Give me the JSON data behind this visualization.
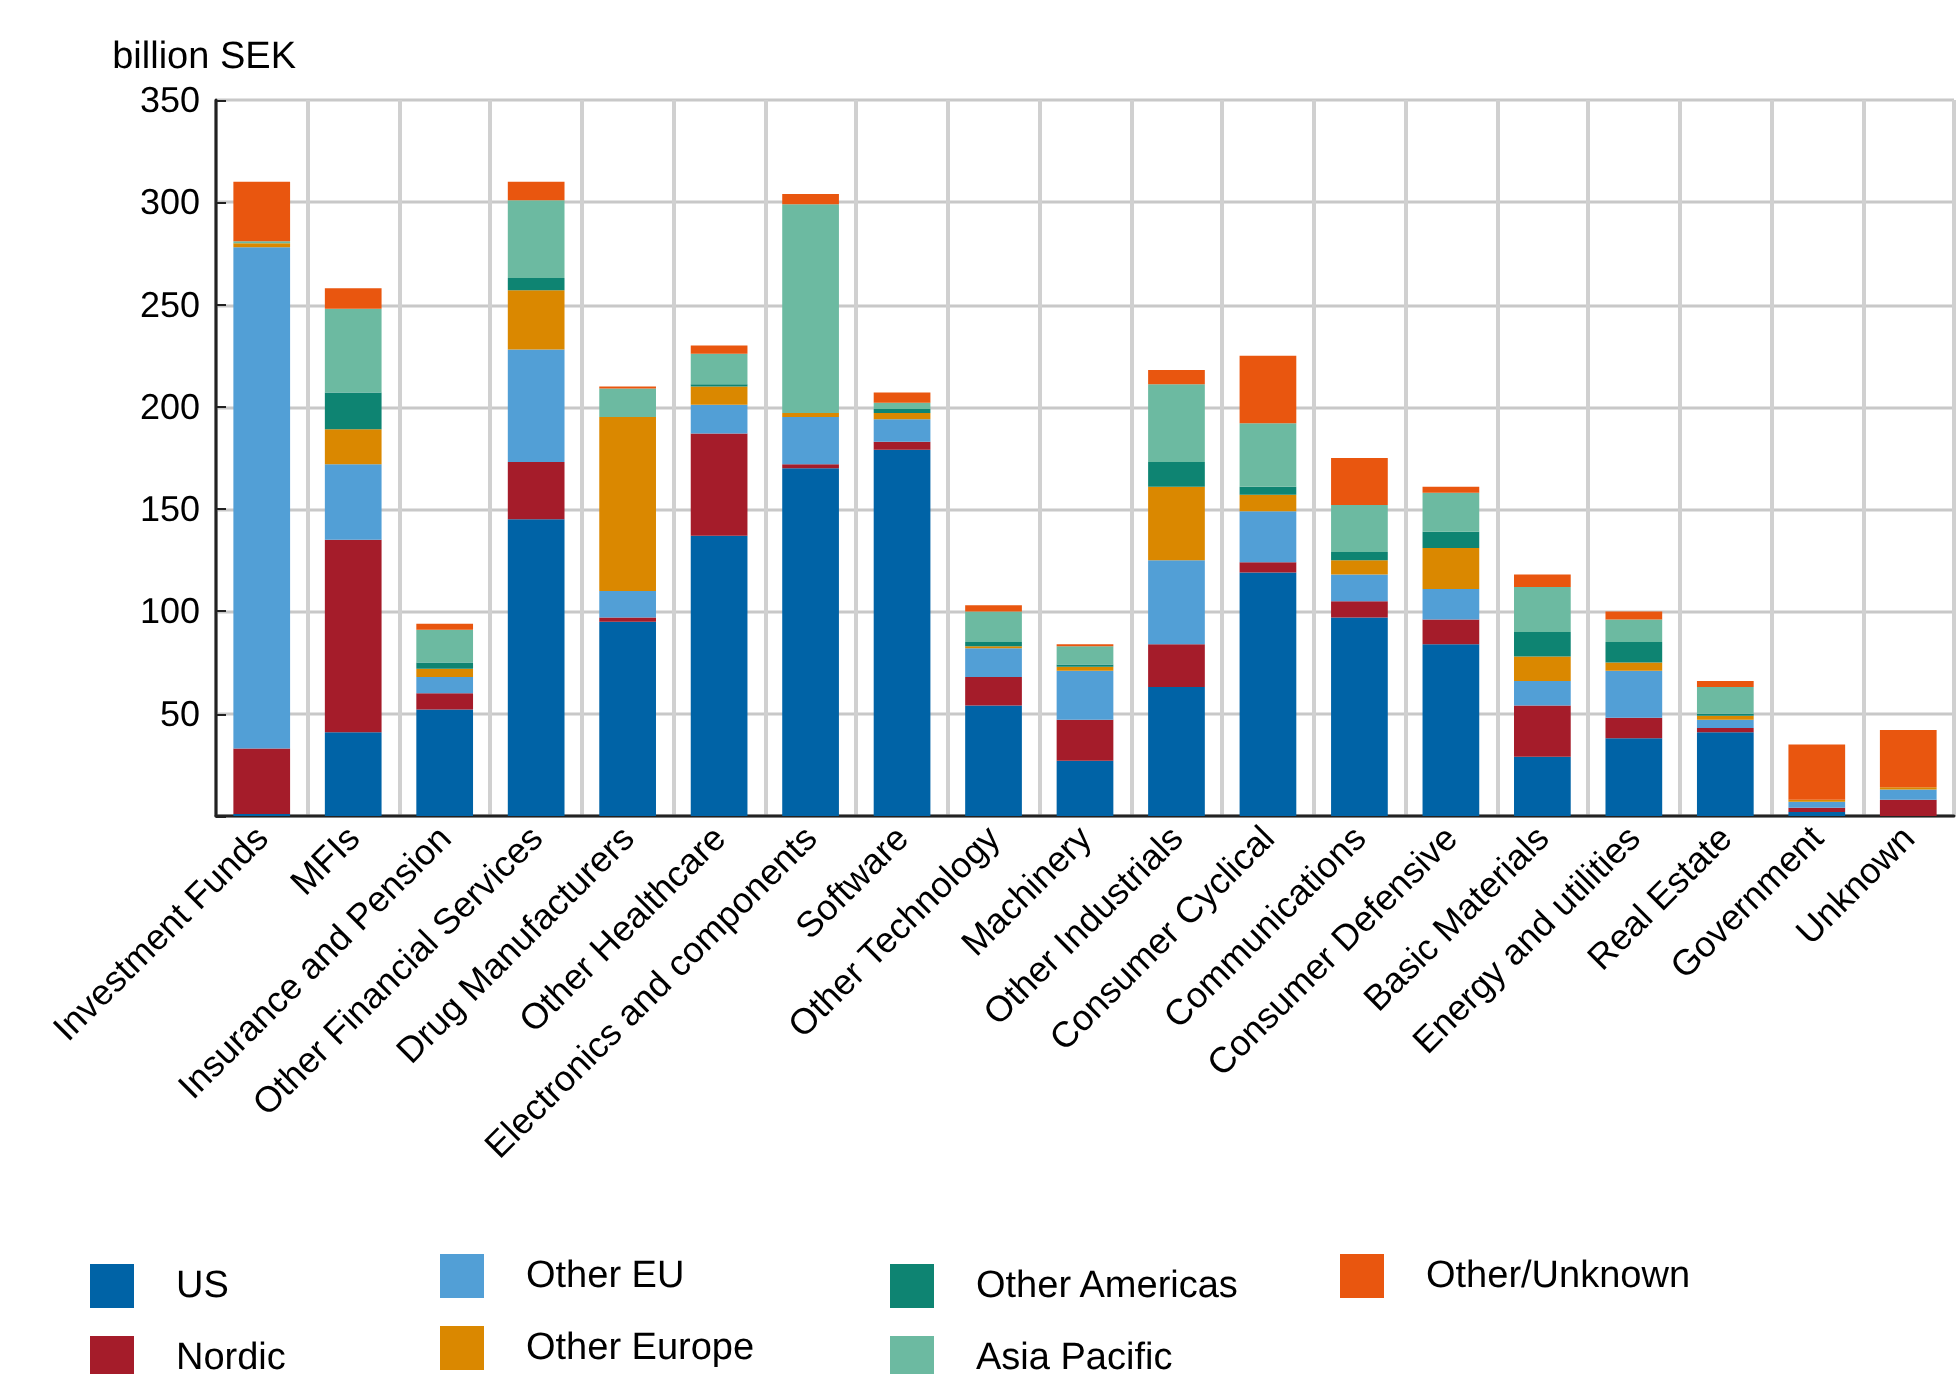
{
  "chart_data": {
    "type": "bar",
    "stacked": true,
    "ylabel": "billion SEK",
    "categories": [
      "Investment Funds",
      "MFIs",
      "Insurance and Pension",
      "Other Financial Services",
      "Drug Manufacturers",
      "Other Healthcare",
      "Electronics and components",
      "Software",
      "Other Technology",
      "Machinery",
      "Other Industrials",
      "Consumer Cyclical",
      "Communications",
      "Consumer Defensive",
      "Basic Materials",
      "Energy and utilities",
      "Real Estate",
      "Government",
      "Unknown"
    ],
    "series": [
      {
        "name": "US",
        "color": "#0063a6",
        "values": [
          1,
          41,
          52,
          145,
          95,
          137,
          170,
          179,
          54,
          27,
          63,
          119,
          97,
          84,
          29,
          38,
          41,
          2,
          0
        ]
      },
      {
        "name": "Nordic",
        "color": "#a51c2a",
        "values": [
          32,
          94,
          8,
          28,
          2,
          50,
          2,
          4,
          14,
          20,
          21,
          5,
          8,
          12,
          25,
          10,
          2,
          2,
          8
        ]
      },
      {
        "name": "Other EU",
        "color": "#529fd6",
        "values": [
          245,
          37,
          8,
          55,
          13,
          14,
          23,
          11,
          14,
          24,
          41,
          25,
          13,
          15,
          12,
          23,
          4,
          3,
          5
        ]
      },
      {
        "name": "Other Europe",
        "color": "#da8800",
        "values": [
          2,
          17,
          4,
          29,
          85,
          9,
          2,
          3,
          1,
          2,
          36,
          8,
          7,
          20,
          12,
          4,
          2,
          1,
          1
        ]
      },
      {
        "name": "Other Americas",
        "color": "#0e8472",
        "values": [
          0,
          18,
          3,
          6,
          0,
          1,
          0,
          2,
          2,
          1,
          12,
          4,
          4,
          8,
          12,
          10,
          1,
          0,
          0
        ]
      },
      {
        "name": "Asia Pacific",
        "color": "#6cbaa1",
        "values": [
          1,
          41,
          16,
          38,
          14,
          15,
          102,
          3,
          15,
          9,
          38,
          31,
          23,
          19,
          22,
          11,
          13,
          0,
          0
        ]
      },
      {
        "name": "Other/Unknown",
        "color": "#e9560f",
        "values": [
          29,
          10,
          3,
          9,
          1,
          4,
          5,
          5,
          3,
          1,
          7,
          33,
          23,
          3,
          6,
          4,
          3,
          27,
          28
        ]
      }
    ],
    "ylim": [
      0,
      350
    ],
    "yticks": [
      {
        "value": 0,
        "label": null
      },
      50,
      100,
      150,
      200,
      250,
      300,
      350
    ],
    "grid": true,
    "legend": "bottom"
  }
}
